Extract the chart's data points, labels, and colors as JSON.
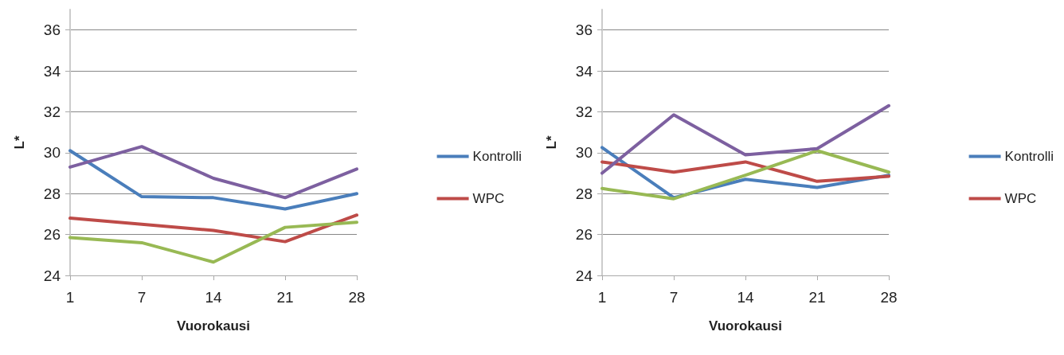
{
  "chart_data": [
    {
      "type": "line",
      "xlabel": "Vuorokausi",
      "ylabel": "L*",
      "categories": [
        "1",
        "7",
        "14",
        "21",
        "28"
      ],
      "ylim": [
        24,
        37
      ],
      "yticks": [
        24,
        26,
        28,
        30,
        32,
        34,
        36
      ],
      "grid": "y",
      "legend": "right",
      "marker": "none",
      "line_style": "solid",
      "series": [
        {
          "name": "Kontrolli",
          "color": "#4a7ebb",
          "values": [
            30.1,
            27.85,
            27.8,
            27.25,
            28.0
          ]
        },
        {
          "name": "WPC",
          "color": "#be4b48",
          "values": [
            26.8,
            26.5,
            26.2,
            25.65,
            26.95
          ]
        },
        {
          "color": "#98b954",
          "values": [
            25.85,
            25.6,
            24.65,
            26.35,
            26.6
          ]
        },
        {
          "color": "#7d60a0",
          "values": [
            29.3,
            30.3,
            28.75,
            27.8,
            29.2
          ]
        }
      ]
    },
    {
      "type": "line",
      "xlabel": "Vuorokausi",
      "ylabel": "L*",
      "categories": [
        "1",
        "7",
        "14",
        "21",
        "28"
      ],
      "ylim": [
        24,
        37
      ],
      "yticks": [
        24,
        26,
        28,
        30,
        32,
        34,
        36
      ],
      "grid": "y",
      "legend": "right",
      "marker": "none",
      "line_style": "solid",
      "series": [
        {
          "name": "Kontrolli",
          "color": "#4a7ebb",
          "values": [
            30.25,
            27.8,
            28.7,
            28.3,
            28.9
          ]
        },
        {
          "name": "WPC",
          "color": "#be4b48",
          "values": [
            29.55,
            29.05,
            29.55,
            28.6,
            28.85
          ]
        },
        {
          "color": "#98b954",
          "values": [
            28.25,
            27.75,
            28.9,
            30.1,
            29.05
          ]
        },
        {
          "color": "#7d60a0",
          "values": [
            29.0,
            31.85,
            29.9,
            30.2,
            32.3
          ]
        }
      ]
    }
  ]
}
